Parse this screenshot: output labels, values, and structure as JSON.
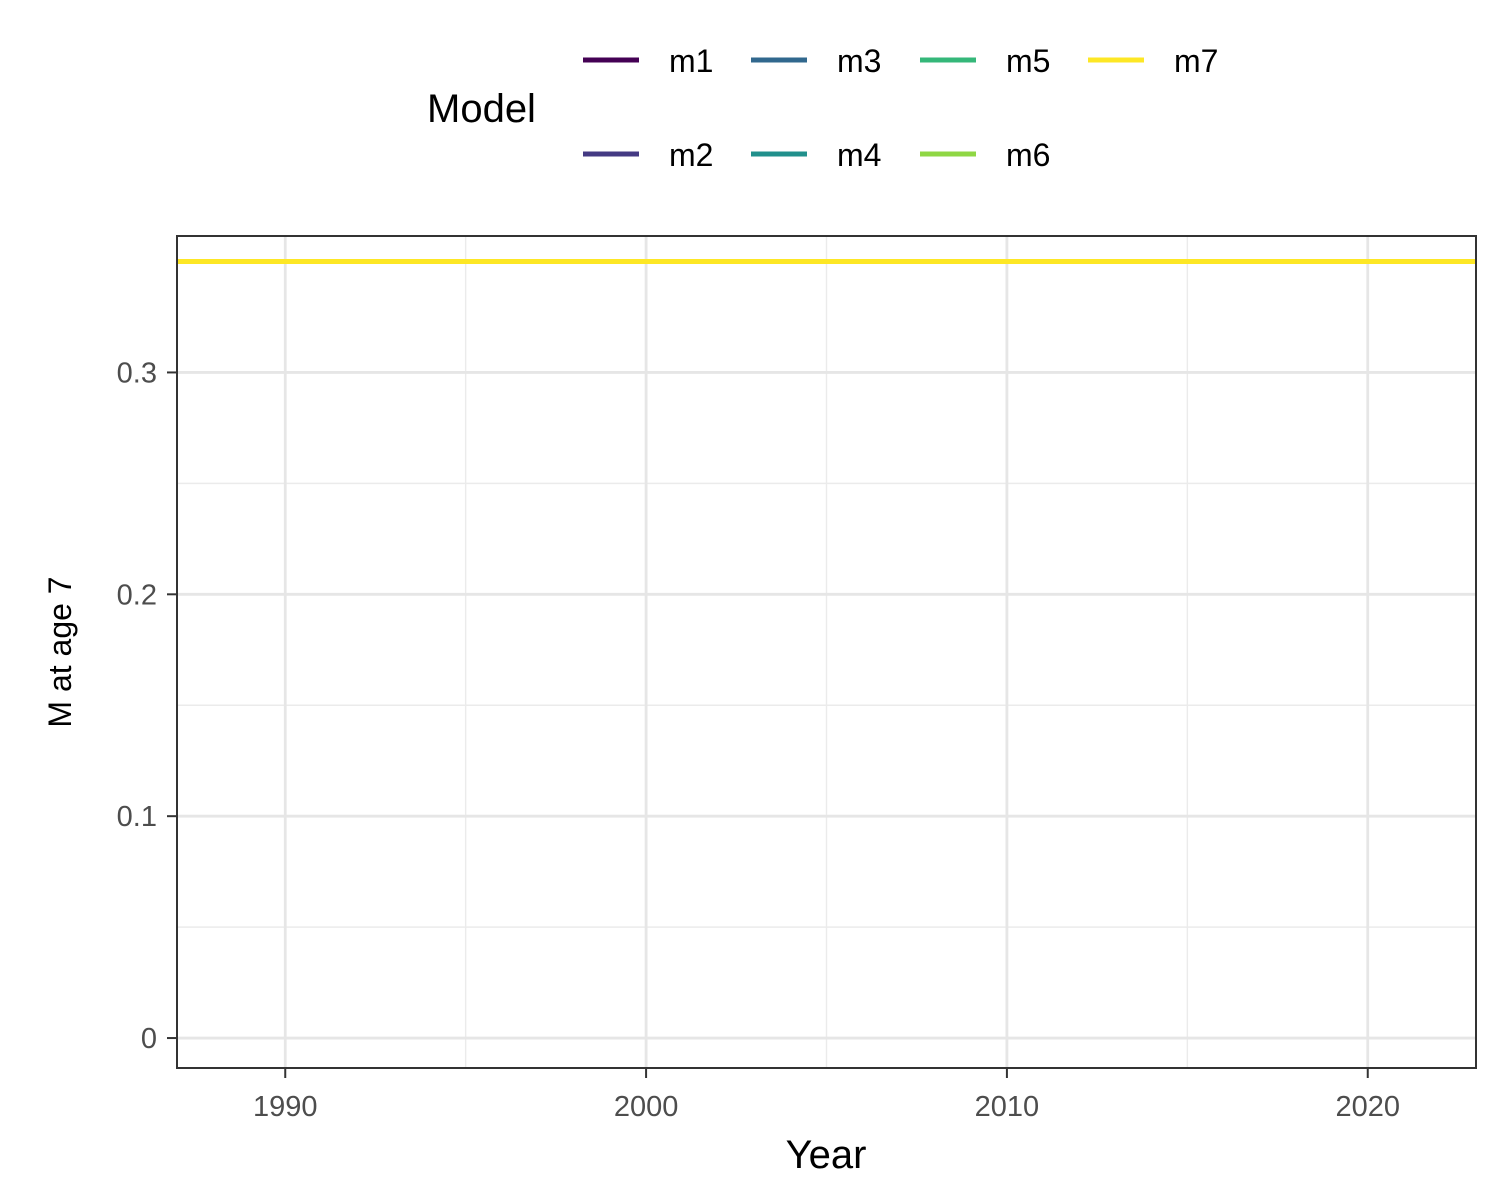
{
  "chart_data": {
    "type": "line",
    "xlabel": "Year",
    "ylabel": "M at age 7",
    "xlim": [
      1987,
      2023
    ],
    "ylim": [
      -0.0135,
      0.3615
    ],
    "x_ticks": [
      1990,
      2000,
      2010,
      2020
    ],
    "x_tick_labels": [
      "1990",
      "2000",
      "2010",
      "2020"
    ],
    "y_ticks": [
      0,
      0.1,
      0.2,
      0.3
    ],
    "y_tick_labels": [
      "0",
      "0.1",
      "0.2",
      "0.3"
    ],
    "grid": true,
    "legend": {
      "title": "Model",
      "position": "top",
      "items": [
        {
          "label": "m1",
          "color": "#440154"
        },
        {
          "label": "m2",
          "color": "#443A83"
        },
        {
          "label": "m3",
          "color": "#31688E"
        },
        {
          "label": "m4",
          "color": "#21908C"
        },
        {
          "label": "m5",
          "color": "#35B779"
        },
        {
          "label": "m6",
          "color": "#8FD744"
        },
        {
          "label": "m7",
          "color": "#FDE725"
        }
      ]
    },
    "series": [
      {
        "name": "m1",
        "color": "#440154",
        "x": [
          1987,
          2023
        ],
        "y": [
          0.35,
          0.35
        ]
      },
      {
        "name": "m2",
        "color": "#443A83",
        "x": [
          1987,
          2023
        ],
        "y": [
          0.35,
          0.35
        ]
      },
      {
        "name": "m3",
        "color": "#31688E",
        "x": [
          1987,
          2023
        ],
        "y": [
          0.35,
          0.35
        ]
      },
      {
        "name": "m4",
        "color": "#21908C",
        "x": [
          1987,
          2023
        ],
        "y": [
          0.35,
          0.35
        ]
      },
      {
        "name": "m5",
        "color": "#35B779",
        "x": [
          1987,
          2023
        ],
        "y": [
          0.35,
          0.35
        ]
      },
      {
        "name": "m6",
        "color": "#8FD744",
        "x": [
          1987,
          2023
        ],
        "y": [
          0.35,
          0.35
        ]
      },
      {
        "name": "m7",
        "color": "#FDE725",
        "x": [
          1987,
          2023
        ],
        "y": [
          0.35,
          0.35
        ]
      }
    ]
  }
}
